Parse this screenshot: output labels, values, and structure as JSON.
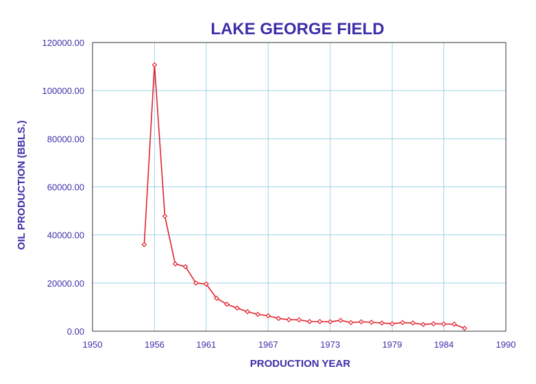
{
  "colors": {
    "text": "#3b2fa8",
    "grid": "#9fd4e6",
    "axis": "#333333",
    "series": "#e0202a",
    "background": "#ffffff"
  },
  "chart_data": {
    "type": "line",
    "title": "LAKE GEORGE FIELD",
    "xlabel": "PRODUCTION YEAR",
    "ylabel": "OIL PRODUCTION (BBLS.)",
    "xlim": [
      1950,
      1990
    ],
    "ylim": [
      0,
      120000
    ],
    "xticks": [
      1950,
      1956,
      1961,
      1967,
      1973,
      1979,
      1984,
      1990
    ],
    "xtick_labels": [
      "1950",
      "1956",
      "1961",
      "1967",
      "1973",
      "1979",
      "1984",
      "1990"
    ],
    "yticks": [
      0,
      20000,
      40000,
      60000,
      80000,
      100000,
      120000
    ],
    "ytick_labels": [
      "0.00",
      "20000.00",
      "40000.00",
      "60000.00",
      "80000.00",
      "100000.00",
      "120000.00"
    ],
    "grid": true,
    "marker": "diamond",
    "series": [
      {
        "x": [
          1955,
          1956,
          1957,
          1958,
          1959,
          1960,
          1961,
          1962,
          1963,
          1964,
          1965,
          1966,
          1967,
          1968,
          1969,
          1970,
          1971,
          1972,
          1973,
          1974,
          1975,
          1976,
          1977,
          1978,
          1979,
          1980,
          1981,
          1982,
          1983,
          1984,
          1985,
          1986
        ],
        "y": [
          36000,
          110700,
          47800,
          28000,
          26800,
          20000,
          19600,
          13700,
          11200,
          9600,
          8100,
          7000,
          6400,
          5300,
          4800,
          4700,
          4000,
          4000,
          3900,
          4500,
          3600,
          3900,
          3700,
          3400,
          3100,
          3600,
          3400,
          2800,
          3100,
          3000,
          2900,
          1200
        ]
      }
    ]
  }
}
